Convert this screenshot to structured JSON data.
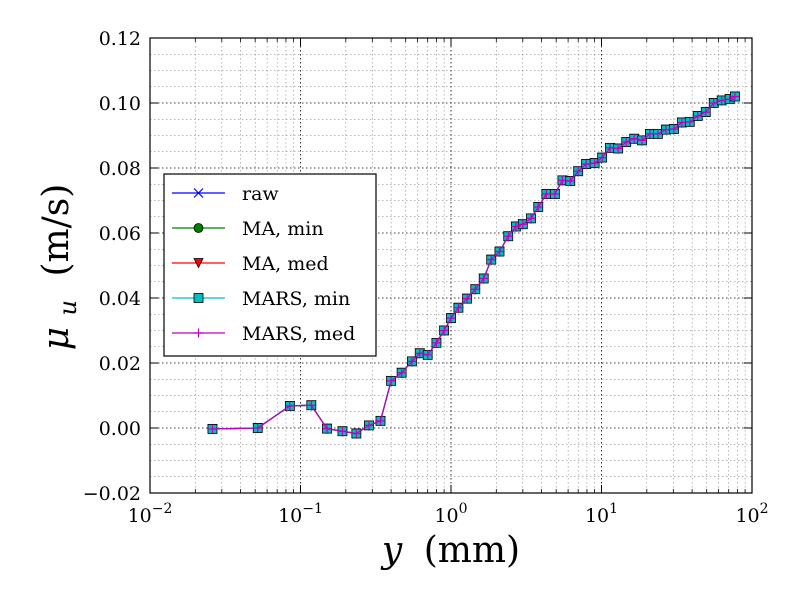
{
  "chart_data": {
    "type": "line",
    "xlabel": "y (mm)",
    "xlabel_var": "y",
    "xlabel_unit": "(mm)",
    "ylabel": "μu (m/s)",
    "ylabel_var": "μ",
    "ylabel_sub": "u",
    "ylabel_unit": "(m/s)",
    "xscale": "log",
    "xlim": [
      0.01,
      100
    ],
    "ylim": [
      -0.02,
      0.12
    ],
    "grid": true,
    "legend_position": "center-left",
    "x_tick_labels": [
      {
        "base": "10",
        "exp": "−2"
      },
      {
        "base": "10",
        "exp": "−1"
      },
      {
        "base": "10",
        "exp": "0"
      },
      {
        "base": "10",
        "exp": "1"
      },
      {
        "base": "10",
        "exp": "2"
      }
    ],
    "y_tick_labels": [
      "−0.02",
      "0.00",
      "0.02",
      "0.04",
      "0.06",
      "0.08",
      "0.10",
      "0.12"
    ],
    "x": [
      0.026,
      0.052,
      0.085,
      0.118,
      0.15,
      0.19,
      0.235,
      0.285,
      0.34,
      0.4,
      0.47,
      0.55,
      0.62,
      0.7,
      0.8,
      0.9,
      1.0,
      1.12,
      1.28,
      1.45,
      1.65,
      1.85,
      2.1,
      2.4,
      2.7,
      3.0,
      3.4,
      3.8,
      4.3,
      4.9,
      5.5,
      6.2,
      7.0,
      7.9,
      9.0,
      10.1,
      11.4,
      12.9,
      14.6,
      16.5,
      18.6,
      21.0,
      23.7,
      26.8,
      30.3,
      34.2,
      38.6,
      43.6,
      49.3,
      55.7,
      62.9,
      71.0,
      77.0
    ],
    "series": [
      {
        "name": "raw",
        "color": "#0000ff",
        "marker": "x"
      },
      {
        "name": "MA, min",
        "color": "#008000",
        "marker": "circle"
      },
      {
        "name": "MA, med",
        "color": "#ff0000",
        "marker": "triangle-down"
      },
      {
        "name": "MARS, min",
        "color": "#00bfbf",
        "marker": "square"
      },
      {
        "name": "MARS, med",
        "color": "#bf00bf",
        "marker": "plus"
      }
    ],
    "values": [
      -0.0003,
      0.0,
      0.0068,
      0.007,
      -0.0002,
      -0.001,
      -0.0017,
      0.0008,
      0.0022,
      0.0145,
      0.017,
      0.0205,
      0.023,
      0.0225,
      0.0262,
      0.03,
      0.0338,
      0.037,
      0.0398,
      0.0427,
      0.046,
      0.0518,
      0.0543,
      0.059,
      0.062,
      0.0627,
      0.0645,
      0.068,
      0.072,
      0.072,
      0.0762,
      0.076,
      0.079,
      0.0812,
      0.0815,
      0.0832,
      0.0862,
      0.086,
      0.088,
      0.089,
      0.0885,
      0.0905,
      0.0905,
      0.0918,
      0.092,
      0.094,
      0.0942,
      0.096,
      0.0972,
      0.1,
      0.1008,
      0.1012,
      0.102
    ]
  }
}
